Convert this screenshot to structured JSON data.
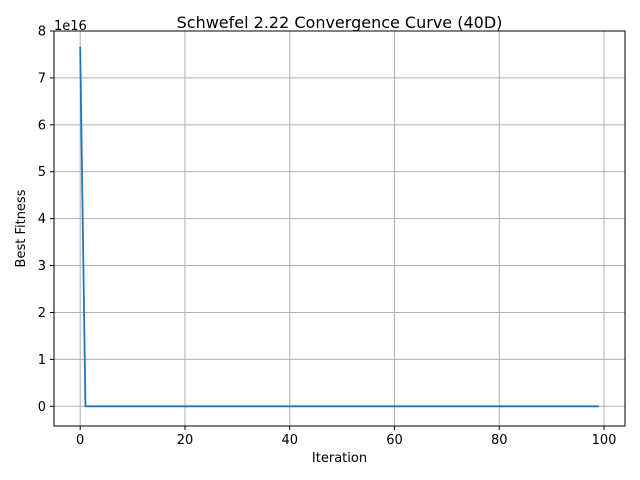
{
  "chart_data": {
    "type": "line",
    "title": "Schwefel 2.22 Convergence Curve (40D)",
    "xlabel": "Iteration",
    "ylabel": "Best Fitness",
    "y_offset_label": "1e16",
    "xlim": [
      -5,
      104
    ],
    "ylim": [
      -0.42,
      8.0
    ],
    "y_scale_factor": 1e+16,
    "x_ticks": [
      0,
      20,
      40,
      60,
      80,
      100
    ],
    "y_ticks": [
      0,
      1,
      2,
      3,
      4,
      5,
      6,
      7,
      8
    ],
    "grid": true,
    "series": [
      {
        "color": "#1f77b4",
        "x": [
          0,
          1,
          99
        ],
        "y": [
          7.66,
          0.0,
          0.0
        ]
      }
    ]
  }
}
